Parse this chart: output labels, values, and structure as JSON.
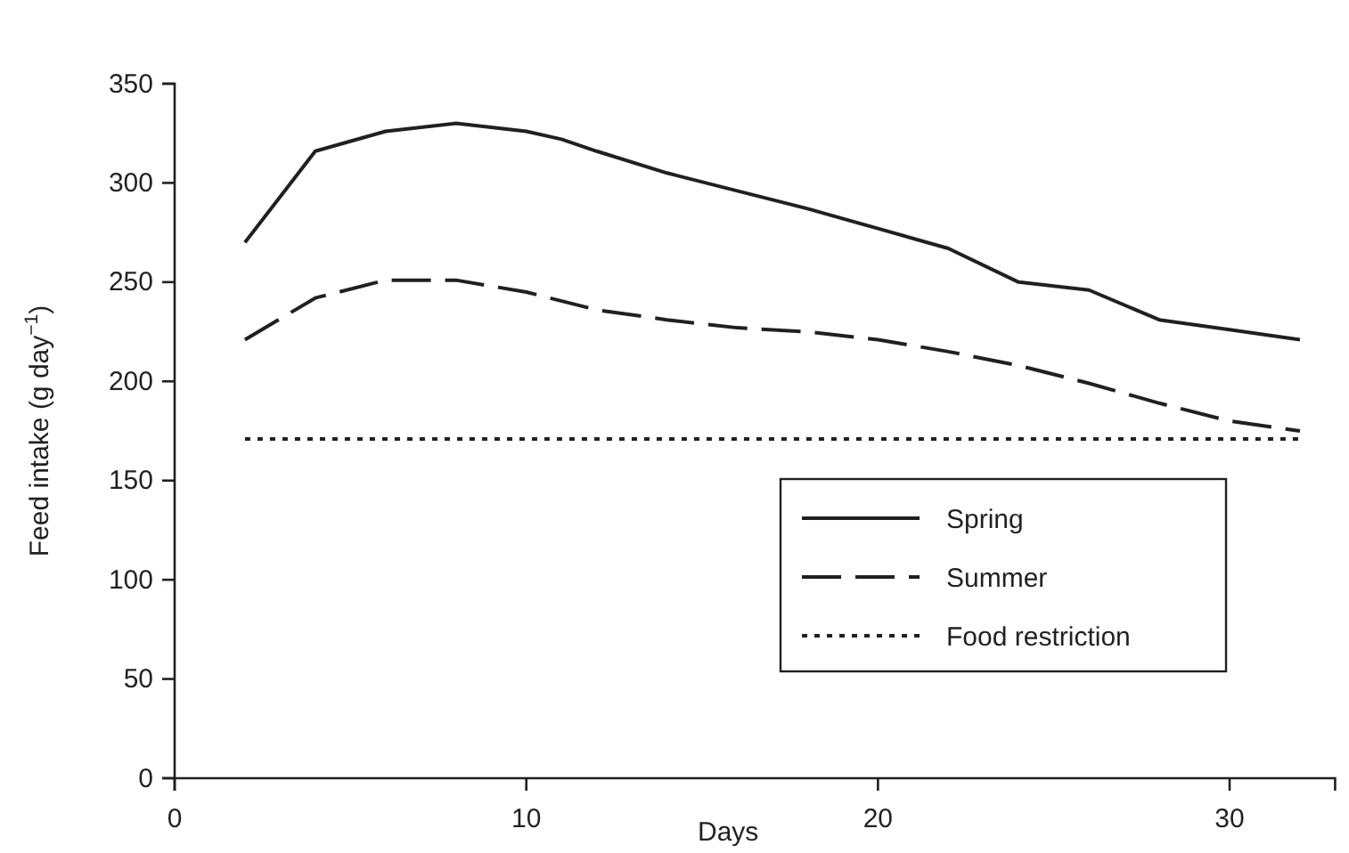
{
  "chart_data": {
    "type": "line",
    "xlabel": "Days",
    "ylabel": "Feed intake (g day$^{−1}$)",
    "xlim": [
      0,
      33
    ],
    "xticks": [
      0,
      10,
      20,
      30
    ],
    "ylim": [
      0,
      350
    ],
    "yticks": [
      0,
      50,
      100,
      150,
      200,
      250,
      300,
      350
    ],
    "grid": false,
    "legend": "bottom right",
    "marker": "none",
    "series": [
      {
        "name": "Spring",
        "color": "#231f20",
        "line_style": "solid",
        "x": [
          2,
          4,
          6,
          8,
          10,
          11,
          12,
          14,
          16,
          18,
          20,
          22,
          24,
          26,
          28,
          30,
          32
        ],
        "values": [
          270,
          316,
          326,
          330,
          326,
          322,
          316,
          305,
          296,
          287,
          277,
          267,
          250,
          246,
          231,
          226,
          221
        ]
      },
      {
        "name": "Summer",
        "color": "#231f20",
        "line_style": "dashed",
        "x": [
          2,
          4,
          6,
          8,
          10,
          12,
          14,
          16,
          18,
          20,
          22,
          24,
          26,
          28,
          30,
          32
        ],
        "values": [
          221,
          242,
          251,
          251,
          245,
          236,
          231,
          227,
          225,
          221,
          215,
          208,
          199,
          189,
          180,
          175
        ]
      },
      {
        "name": "Food restriction",
        "color": "#231f20",
        "line_style": "dotted",
        "x": [
          2,
          32
        ],
        "values": [
          171,
          171
        ]
      }
    ]
  }
}
